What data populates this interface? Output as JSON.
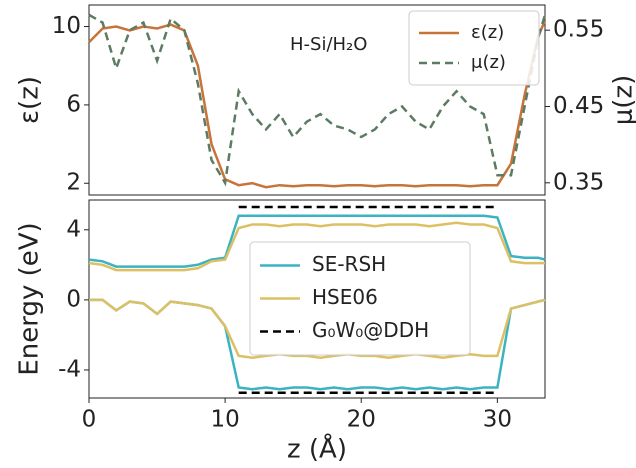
{
  "chart_data": [
    {
      "type": "line",
      "y_label": "ε(z)",
      "y2_label": "μ(z)",
      "annotation": "H-Si/H₂O",
      "x": [
        0,
        1,
        2,
        3,
        4,
        5,
        6,
        7,
        8,
        9,
        10,
        11,
        12,
        13,
        14,
        15,
        16,
        17,
        18,
        19,
        20,
        21,
        22,
        23,
        24,
        25,
        26,
        27,
        28,
        29,
        30,
        31,
        32,
        33,
        33.5
      ],
      "xlim": [
        0,
        33.5
      ],
      "ylim": [
        1.4,
        11.1
      ],
      "yticks": [
        2,
        6,
        10
      ],
      "y2lim": [
        0.334,
        0.583
      ],
      "y2ticks": [
        0.35,
        0.45,
        0.55
      ],
      "legend": "upper right",
      "series": [
        {
          "name": "ε(z)",
          "color": "#c8733a",
          "dash": false,
          "values": [
            9.2,
            9.9,
            10,
            9.8,
            10,
            9.9,
            10.1,
            9.8,
            8,
            4,
            2.2,
            1.9,
            2.0,
            1.8,
            1.9,
            1.85,
            1.9,
            1.9,
            1.85,
            1.9,
            1.9,
            1.85,
            1.9,
            1.9,
            1.85,
            1.9,
            1.9,
            1.9,
            1.85,
            1.9,
            1.9,
            3,
            6.5,
            9.5,
            10.3
          ]
        },
        {
          "name": "μ(z)",
          "color": "#5b7b62",
          "dash": true,
          "axis": "y2",
          "values": [
            0.57,
            0.56,
            0.5,
            0.55,
            0.56,
            0.51,
            0.565,
            0.55,
            0.48,
            0.38,
            0.35,
            0.47,
            0.44,
            0.42,
            0.44,
            0.41,
            0.43,
            0.44,
            0.425,
            0.42,
            0.41,
            0.42,
            0.44,
            0.45,
            0.43,
            0.42,
            0.45,
            0.47,
            0.45,
            0.44,
            0.36,
            0.36,
            0.45,
            0.54,
            0.57
          ]
        }
      ]
    },
    {
      "type": "line",
      "y_label": "Energy (eV)",
      "x_label": "z (Å)",
      "x": [
        0,
        1,
        2,
        3,
        4,
        5,
        6,
        7,
        8,
        9,
        10,
        11,
        12,
        13,
        14,
        15,
        16,
        17,
        18,
        19,
        20,
        21,
        22,
        23,
        24,
        25,
        26,
        27,
        28,
        29,
        30,
        31,
        32,
        33,
        33.5
      ],
      "xlim": [
        0,
        33.5
      ],
      "xticks": [
        0,
        10,
        20,
        30
      ],
      "ylim": [
        -5.6,
        5.7
      ],
      "yticks": [
        -4,
        0,
        4
      ],
      "legend": "center",
      "series": [
        {
          "name": "SE-RSH",
          "color": "#3bb3c2",
          "dash": false,
          "values": [
            2.3,
            2.2,
            1.9,
            1.9,
            1.9,
            1.9,
            1.9,
            1.9,
            2.0,
            2.3,
            2.4,
            4.8,
            4.8,
            4.8,
            4.8,
            4.8,
            4.8,
            4.8,
            4.8,
            4.8,
            4.8,
            4.8,
            4.8,
            4.8,
            4.8,
            4.8,
            4.8,
            4.8,
            4.8,
            4.8,
            4.7,
            2.5,
            2.4,
            2.4,
            2.3
          ]
        },
        {
          "name": "HSE06",
          "color": "#dcc063",
          "dash": false,
          "values": [
            2.1,
            2.0,
            1.7,
            1.7,
            1.7,
            1.7,
            1.7,
            1.7,
            1.8,
            2.2,
            2.3,
            4.1,
            4.3,
            4.3,
            4.2,
            4.3,
            4.3,
            4.2,
            4.3,
            4.3,
            4.3,
            4.2,
            4.3,
            4.3,
            4.3,
            4.2,
            4.3,
            4.4,
            4.3,
            4.3,
            4.1,
            2.2,
            2.1,
            2.1,
            2.1
          ]
        },
        {
          "color": "#3bb3c2",
          "dash": false,
          "values": [
            0,
            0,
            -0.6,
            -0.1,
            -0.2,
            -0.8,
            -0.1,
            -0.2,
            -0.3,
            -0.5,
            -1.5,
            -5.0,
            -5.1,
            -5.0,
            -5.1,
            -5.0,
            -5.0,
            -5.1,
            -5.0,
            -5.1,
            -5.0,
            -5.0,
            -5.1,
            -5.0,
            -5.1,
            -5.0,
            -5.1,
            -5.0,
            -5.1,
            -5.0,
            -5.0,
            -0.5,
            -0.3,
            -0.1,
            0
          ]
        },
        {
          "color": "#dcc063",
          "dash": false,
          "values": [
            0,
            0,
            -0.6,
            -0.1,
            -0.2,
            -0.8,
            -0.1,
            -0.2,
            -0.3,
            -0.5,
            -1.5,
            -3.2,
            -3.3,
            -3.2,
            -3.1,
            -3.2,
            -3.2,
            -3.3,
            -3.2,
            -3.1,
            -3.2,
            -3.2,
            -3.3,
            -3.2,
            -3.1,
            -3.2,
            -3.3,
            -3.2,
            -3.1,
            -3.2,
            -3.2,
            -0.5,
            -0.3,
            -0.1,
            0
          ]
        },
        {
          "name": "G₀W₀@DDH",
          "color": "#000000",
          "dash": true,
          "x": [
            11,
            30
          ],
          "values": [
            5.3,
            5.3
          ]
        },
        {
          "color": "#000000",
          "dash": true,
          "x": [
            11,
            30
          ],
          "values": [
            -5.3,
            -5.3
          ]
        }
      ]
    }
  ]
}
